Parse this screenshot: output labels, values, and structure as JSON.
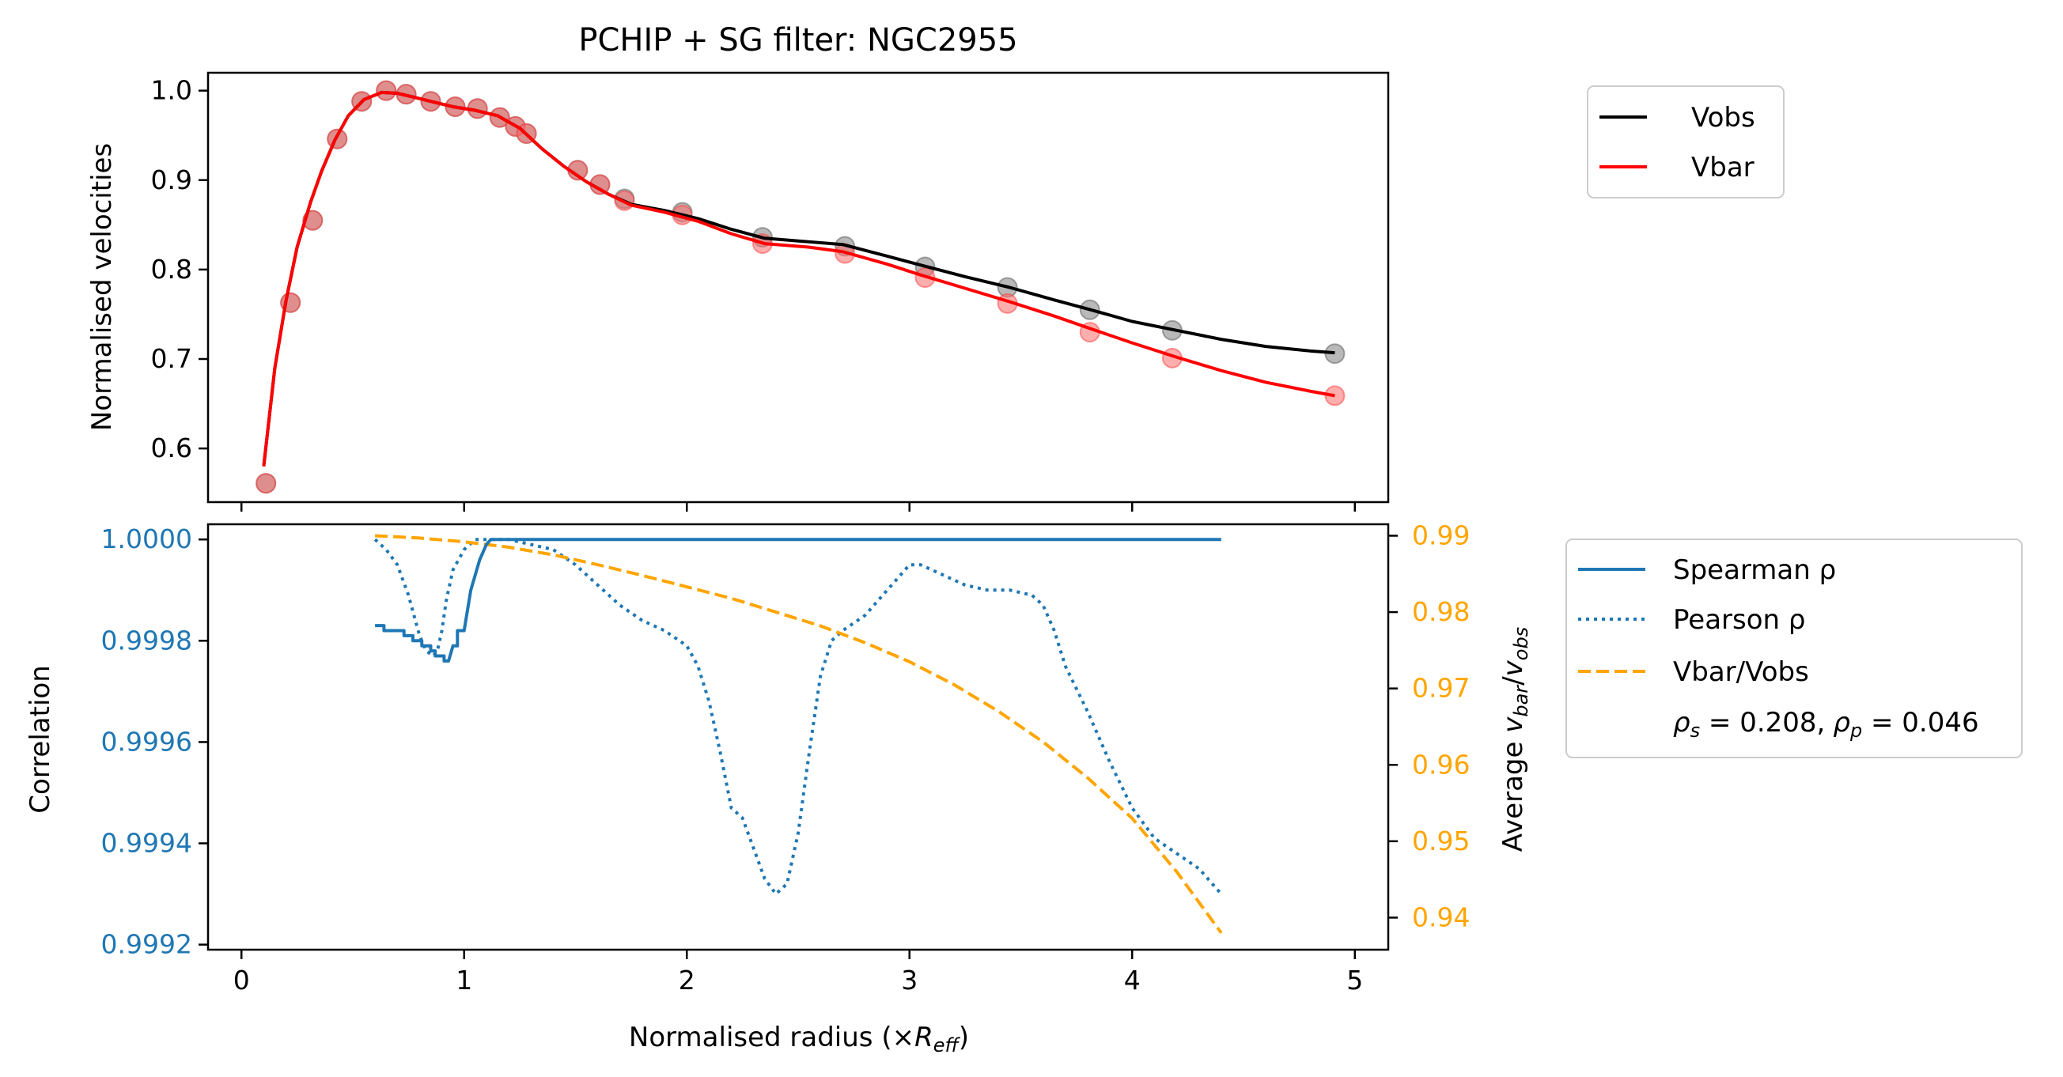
{
  "chart_data": [
    {
      "type": "line",
      "title": "PCHIP + SG filter: NGC2955",
      "xlabel": "",
      "ylabel": "Normalised velocities",
      "xlim": [
        -0.15,
        5.15
      ],
      "ylim": [
        0.54,
        1.02
      ],
      "x_ticks": [
        0,
        1,
        2,
        3,
        4,
        5
      ],
      "y_ticks": [
        0.6,
        0.7,
        0.8,
        0.9,
        1.0
      ],
      "y_tick_labels": [
        "0.6",
        "0.7",
        "0.8",
        "0.9",
        "1.0"
      ],
      "legend": {
        "position": "outside-right-top",
        "entries": [
          "Vobs",
          "Vbar"
        ]
      },
      "colors": {
        "Vobs": "#000000",
        "Vbar": "#ff0000",
        "obs_points": "#808080",
        "bar_points": "#ff6b6b"
      },
      "series": [
        {
          "name": "Vobs",
          "style": "solid",
          "x": [
            0.1,
            0.15,
            0.2,
            0.25,
            0.31,
            0.36,
            0.42,
            0.48,
            0.55,
            0.63,
            0.7,
            0.77,
            0.85,
            0.95,
            1.05,
            1.15,
            1.25,
            1.35,
            1.45,
            1.55,
            1.65,
            1.75,
            1.9,
            2.05,
            2.2,
            2.35,
            2.55,
            2.7,
            2.9,
            3.05,
            3.25,
            3.45,
            3.65,
            3.8,
            4.0,
            4.2,
            4.4,
            4.6,
            4.8,
            4.91
          ],
          "y": [
            0.58,
            0.69,
            0.765,
            0.825,
            0.875,
            0.91,
            0.945,
            0.972,
            0.99,
            0.998,
            0.997,
            0.993,
            0.988,
            0.982,
            0.978,
            0.972,
            0.958,
            0.935,
            0.915,
            0.898,
            0.884,
            0.873,
            0.866,
            0.857,
            0.845,
            0.835,
            0.831,
            0.828,
            0.815,
            0.805,
            0.792,
            0.78,
            0.766,
            0.756,
            0.742,
            0.732,
            0.722,
            0.714,
            0.709,
            0.707
          ]
        },
        {
          "name": "Vbar",
          "style": "solid",
          "x": [
            0.1,
            0.15,
            0.2,
            0.25,
            0.31,
            0.36,
            0.42,
            0.48,
            0.55,
            0.63,
            0.7,
            0.77,
            0.85,
            0.95,
            1.05,
            1.15,
            1.25,
            1.35,
            1.45,
            1.55,
            1.65,
            1.75,
            1.9,
            2.05,
            2.2,
            2.35,
            2.55,
            2.7,
            2.9,
            3.05,
            3.25,
            3.45,
            3.65,
            3.8,
            4.0,
            4.2,
            4.4,
            4.6,
            4.8,
            4.91
          ],
          "y": [
            0.58,
            0.69,
            0.765,
            0.825,
            0.875,
            0.91,
            0.945,
            0.972,
            0.99,
            0.998,
            0.997,
            0.993,
            0.988,
            0.982,
            0.978,
            0.972,
            0.958,
            0.935,
            0.915,
            0.898,
            0.884,
            0.872,
            0.864,
            0.854,
            0.84,
            0.829,
            0.825,
            0.82,
            0.806,
            0.794,
            0.779,
            0.764,
            0.748,
            0.735,
            0.718,
            0.702,
            0.687,
            0.674,
            0.664,
            0.659
          ]
        },
        {
          "name": "Vobs data",
          "style": "markers",
          "x": [
            0.11,
            0.22,
            0.32,
            0.43,
            0.54,
            0.65,
            0.74,
            0.85,
            0.96,
            1.06,
            1.16,
            1.23,
            1.28,
            1.51,
            1.61,
            1.72,
            1.98,
            2.34,
            2.71,
            3.07,
            3.44,
            3.81,
            4.18,
            4.91
          ],
          "y": [
            0.561,
            0.763,
            0.855,
            0.946,
            0.988,
            1.0,
            0.996,
            0.988,
            0.982,
            0.98,
            0.97,
            0.96,
            0.952,
            0.911,
            0.895,
            0.879,
            0.864,
            0.836,
            0.826,
            0.803,
            0.78,
            0.755,
            0.732,
            0.706
          ]
        },
        {
          "name": "Vbar data",
          "style": "markers",
          "x": [
            0.11,
            0.22,
            0.32,
            0.43,
            0.54,
            0.65,
            0.74,
            0.85,
            0.96,
            1.06,
            1.16,
            1.23,
            1.28,
            1.51,
            1.61,
            1.72,
            1.98,
            2.34,
            2.71,
            3.07,
            3.44,
            3.81,
            4.18,
            4.91
          ],
          "y": [
            0.561,
            0.763,
            0.855,
            0.946,
            0.988,
            1.0,
            0.996,
            0.988,
            0.982,
            0.98,
            0.97,
            0.96,
            0.952,
            0.911,
            0.895,
            0.877,
            0.861,
            0.829,
            0.818,
            0.791,
            0.762,
            0.73,
            0.701,
            0.659
          ]
        }
      ]
    },
    {
      "type": "line",
      "title": "",
      "xlabel": "Normalised radius (×R_eff)",
      "xlabel_main": "Normalised radius (×",
      "xlabel_sym": "R",
      "xlabel_sub": "eff",
      "xlabel_close": ")",
      "ylabel": "Correlation",
      "ylabel_right": "Average v_bar/v_obs",
      "ylabel_right_main": "Average ",
      "ylabel_right_v1": "v",
      "ylabel_right_sub1": "bar",
      "ylabel_right_slash": "/",
      "ylabel_right_v2": "v",
      "ylabel_right_sub2": "obs",
      "xlim": [
        -0.15,
        5.15
      ],
      "ylim": [
        0.99919,
        1.00003
      ],
      "ylim_right": [
        0.9358,
        0.9915
      ],
      "x_ticks": [
        0,
        1,
        2,
        3,
        4,
        5
      ],
      "x_tick_labels": [
        "0",
        "1",
        "2",
        "3",
        "4",
        "5"
      ],
      "y_ticks": [
        0.9992,
        0.9994,
        0.9996,
        0.9998,
        1.0
      ],
      "y_tick_labels": [
        "0.9992",
        "0.9994",
        "0.9996",
        "0.9998",
        "1.0000"
      ],
      "y_ticks_right": [
        0.94,
        0.95,
        0.96,
        0.97,
        0.98,
        0.99
      ],
      "y_tick_labels_right": [
        "0.94",
        "0.95",
        "0.96",
        "0.97",
        "0.98",
        "0.99"
      ],
      "legend": {
        "position": "outside-right",
        "entries": [
          "Spearman ρ",
          "Pearson ρ",
          "Vbar/Vobs"
        ],
        "stats_rho_s_sym": "ρ",
        "stats_rho_s_sub": "s",
        "stats_rho_s_val": " = 0.208,",
        "stats_rho_p_sym": "ρ",
        "stats_rho_p_sub": "p",
        "stats_rho_p_val": " = 0.046"
      },
      "colors": {
        "Spearman": "#1f77b4",
        "Pearson": "#1f77b4",
        "ratio": "#ffa500"
      },
      "series": [
        {
          "name": "Spearman ρ",
          "axis": "left",
          "style": "solid",
          "x": [
            0.6,
            0.64,
            0.64,
            0.73,
            0.73,
            0.77,
            0.77,
            0.81,
            0.81,
            0.85,
            0.85,
            0.87,
            0.87,
            0.91,
            0.91,
            0.93,
            0.95,
            0.97,
            0.97,
            1.0,
            1.03,
            1.07,
            1.1,
            1.12,
            1.2,
            1.4,
            2.0,
            3.0,
            4.4
          ],
          "y": [
            0.99983,
            0.99983,
            0.99982,
            0.99982,
            0.99981,
            0.99981,
            0.9998,
            0.9998,
            0.99979,
            0.99979,
            0.99978,
            0.99978,
            0.99977,
            0.99977,
            0.99976,
            0.99976,
            0.99979,
            0.99979,
            0.99982,
            0.99982,
            0.9999,
            0.99996,
            0.99999,
            1.0,
            1.0,
            1.0,
            1.0,
            1.0,
            1.0
          ]
        },
        {
          "name": "Pearson ρ",
          "axis": "left",
          "style": "dotted",
          "x": [
            0.6,
            0.65,
            0.7,
            0.75,
            0.8,
            0.83,
            0.86,
            0.88,
            0.9,
            0.92,
            0.95,
            1.0,
            1.05,
            1.1,
            1.15,
            1.2,
            1.3,
            1.4,
            1.5,
            1.6,
            1.7,
            1.8,
            1.9,
            2.0,
            2.05,
            2.1,
            2.15,
            2.2,
            2.25,
            2.3,
            2.35,
            2.4,
            2.45,
            2.5,
            2.55,
            2.6,
            2.65,
            2.7,
            2.8,
            2.9,
            3.0,
            3.05,
            3.15,
            3.25,
            3.35,
            3.45,
            3.55,
            3.6,
            3.65,
            3.7,
            3.8,
            3.9,
            4.0,
            4.1,
            4.2,
            4.3,
            4.4
          ],
          "y": [
            1.0,
            0.99998,
            0.99995,
            0.99989,
            0.99981,
            0.99978,
            0.99977,
            0.99978,
            0.99982,
            0.99988,
            0.99994,
            0.99998,
            1.0,
            1.0,
            1.0,
            1.0,
            0.99999,
            0.99998,
            0.99995,
            0.99991,
            0.99987,
            0.99984,
            0.99982,
            0.99979,
            0.99975,
            0.99968,
            0.99958,
            0.99947,
            0.99945,
            0.99939,
            0.99933,
            0.9993,
            0.99932,
            0.99942,
            0.99958,
            0.99973,
            0.9998,
            0.99982,
            0.99985,
            0.9999,
            0.99995,
            0.99995,
            0.99993,
            0.99991,
            0.9999,
            0.9999,
            0.99989,
            0.99987,
            0.99982,
            0.99975,
            0.99966,
            0.99956,
            0.99947,
            0.99941,
            0.99938,
            0.99935,
            0.9993
          ]
        },
        {
          "name": "Vbar/Vobs",
          "axis": "right",
          "style": "dashed",
          "x": [
            0.6,
            0.8,
            1.0,
            1.2,
            1.4,
            1.6,
            1.8,
            2.0,
            2.2,
            2.4,
            2.6,
            2.8,
            3.0,
            3.2,
            3.4,
            3.6,
            3.8,
            4.0,
            4.2,
            4.4
          ],
          "y": [
            0.99,
            0.9897,
            0.9892,
            0.9885,
            0.9875,
            0.9862,
            0.9848,
            0.9833,
            0.9818,
            0.98,
            0.9782,
            0.976,
            0.9735,
            0.9705,
            0.967,
            0.963,
            0.9583,
            0.953,
            0.946,
            0.938
          ]
        }
      ]
    }
  ]
}
